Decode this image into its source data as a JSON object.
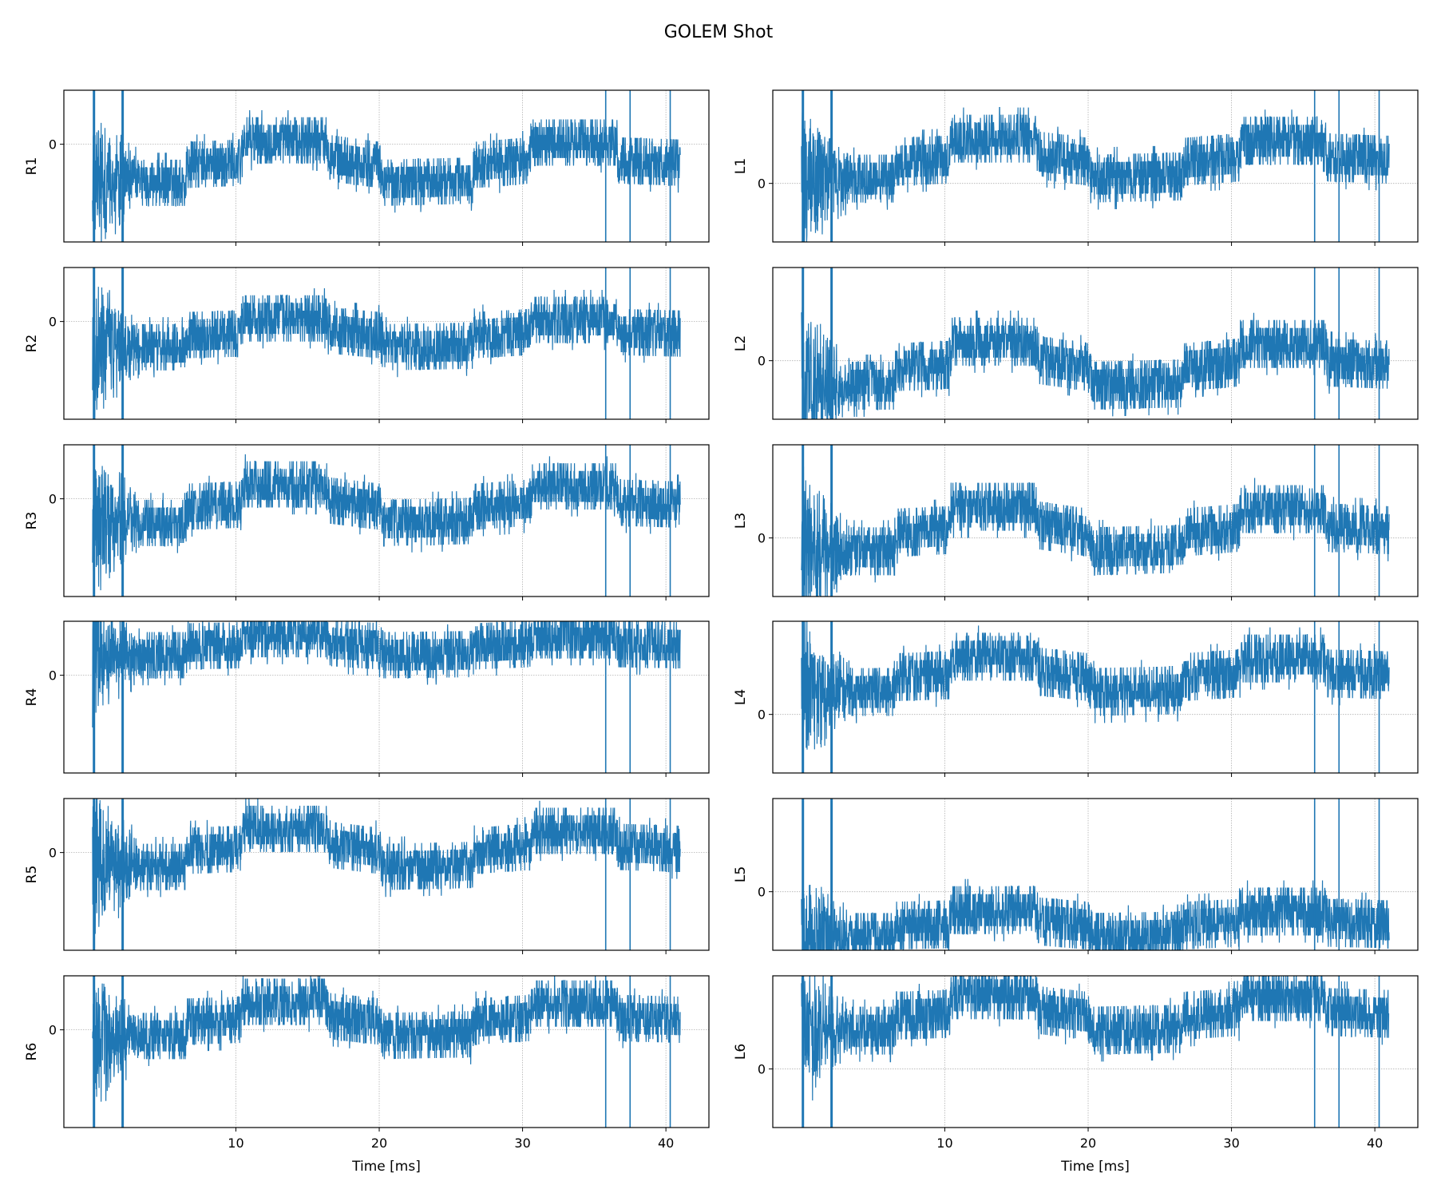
{
  "chart_data": {
    "type": "line",
    "title": "GOLEM Shot",
    "xlabel": "Time [ms]",
    "xlim": [
      -2,
      43
    ],
    "xticks": [
      10,
      20,
      30,
      40
    ],
    "grid": true,
    "line_color": "#1f77b4",
    "spike_times_ms": [
      0.1,
      2.1,
      35.8,
      37.5,
      40.3
    ],
    "signal_span_ms": [
      0,
      41
    ],
    "trend_keypoints": {
      "t": [
        0,
        6.5,
        6.6,
        10.3,
        10.5,
        16.3,
        16.6,
        20,
        20.3,
        26.5,
        26.7,
        30.5,
        30.7,
        36.5,
        36.7,
        41
      ],
      "fraction": [
        0,
        0,
        0.4,
        0.45,
        0.95,
        0.95,
        0.55,
        0.4,
        0,
        0.05,
        0.4,
        0.5,
        0.9,
        0.9,
        0.5,
        0.45
      ]
    },
    "noise_halfwidth": 0.45,
    "columns": [
      {
        "ylim": [
          -1.9,
          1.05
        ],
        "panels": [
          {
            "ylabel": "R1",
            "low": -0.75,
            "high": 0.12
          },
          {
            "ylabel": "R2",
            "low": -0.5,
            "high": 0.09
          },
          {
            "ylabel": "R3",
            "low": -0.47,
            "high": 0.32
          },
          {
            "ylabel": "R4",
            "low": 0.39,
            "high": 0.82
          },
          {
            "ylabel": "R5",
            "low": -0.28,
            "high": 0.5
          },
          {
            "ylabel": "R6",
            "low": -0.12,
            "high": 0.58
          }
        ]
      },
      {
        "ylim": [
          -1.1,
          1.75
        ],
        "panels": [
          {
            "ylabel": "L1",
            "low": 0.09,
            "high": 0.88
          },
          {
            "ylabel": "L2",
            "low": -0.47,
            "high": 0.4
          },
          {
            "ylabel": "L3",
            "low": -0.25,
            "high": 0.63
          },
          {
            "ylabel": "L4",
            "low": 0.42,
            "high": 1.12
          },
          {
            "ylabel": "L5",
            "low": -0.85,
            "high": -0.32
          },
          {
            "ylabel": "L6",
            "low": 0.72,
            "high": 1.42
          }
        ]
      }
    ],
    "ytick_label": "0"
  }
}
